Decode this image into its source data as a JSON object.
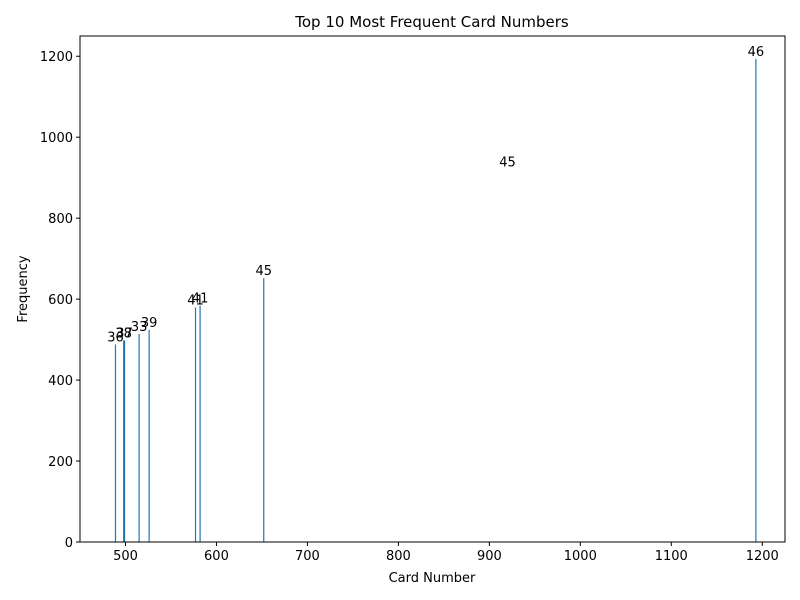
{
  "chart_data": {
    "type": "bar",
    "title": "Top 10 Most Frequent Card Numbers",
    "xlabel": "Card Number",
    "ylabel": "Frequency",
    "xlim": [
      450,
      1225
    ],
    "ylim": [
      0,
      1250
    ],
    "xticks": [
      500,
      600,
      700,
      800,
      900,
      1000,
      1100,
      1200
    ],
    "yticks": [
      0,
      200,
      400,
      600,
      800,
      1000,
      1200
    ],
    "bar_color": "#1f77b4",
    "grid": false,
    "bars": [
      {
        "x": 489,
        "value": 488,
        "label": "36"
      },
      {
        "x": 498,
        "value": 498,
        "label": "38"
      },
      {
        "x": 499,
        "value": 498,
        "label": "37"
      },
      {
        "x": 515,
        "value": 514,
        "label": "33"
      },
      {
        "x": 526,
        "value": 524,
        "label": "39"
      },
      {
        "x": 577,
        "value": 579,
        "label": "41"
      },
      {
        "x": 582,
        "value": 584,
        "label": "41"
      },
      {
        "x": 652,
        "value": 652,
        "label": "45"
      },
      {
        "x": 1193,
        "value": 1193,
        "label": "46"
      }
    ],
    "annotations": [
      {
        "x": 920,
        "y": 940,
        "text": "45"
      }
    ]
  }
}
